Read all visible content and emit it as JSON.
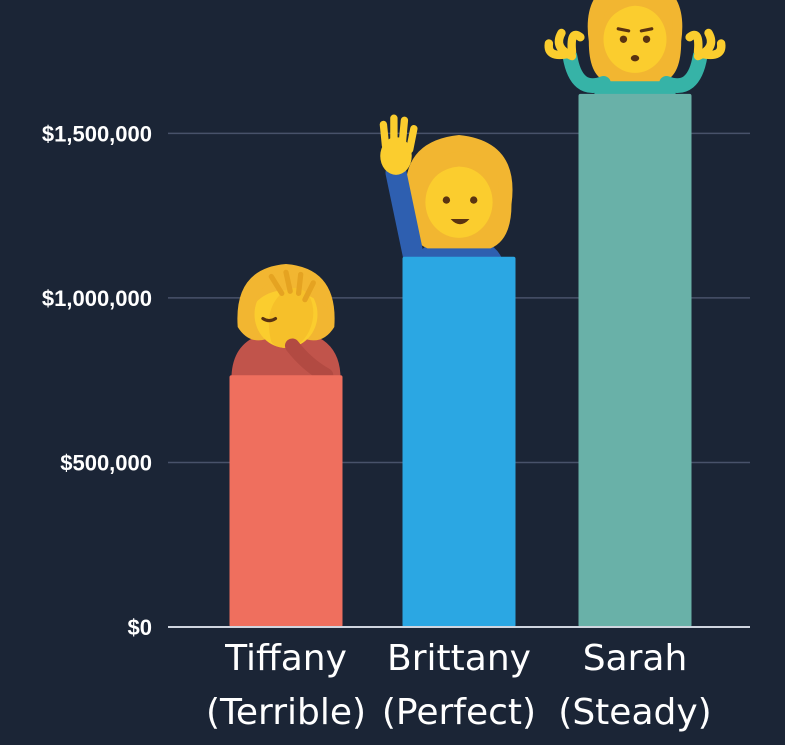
{
  "chart_data": {
    "type": "bar",
    "title": "",
    "xlabel": "",
    "ylabel": "",
    "ylim": [
      0,
      1650000
    ],
    "yticks": [
      {
        "value": 0,
        "label": "$0"
      },
      {
        "value": 500000,
        "label": "$500,000"
      },
      {
        "value": 1000000,
        "label": "$1,000,000"
      },
      {
        "value": 1500000,
        "label": "$1,500,000"
      }
    ],
    "categories": [
      {
        "name": "Tiffany",
        "sub": "(Terrible)"
      },
      {
        "name": "Brittany",
        "sub": "(Perfect)"
      },
      {
        "name": "Sarah",
        "sub": "(Steady)"
      }
    ],
    "values": [
      765000,
      1125000,
      1620000
    ],
    "bar_colors": [
      "#ef6f5e",
      "#2ba7e3",
      "#69b1a8"
    ],
    "bar_icons": [
      "facepalm-icon",
      "raising-hand-icon",
      "shrug-icon"
    ],
    "axis_color": "#cfd5df",
    "grid_color": "#48526a",
    "text_color": "#ffffff",
    "background": "#1b2536"
  }
}
